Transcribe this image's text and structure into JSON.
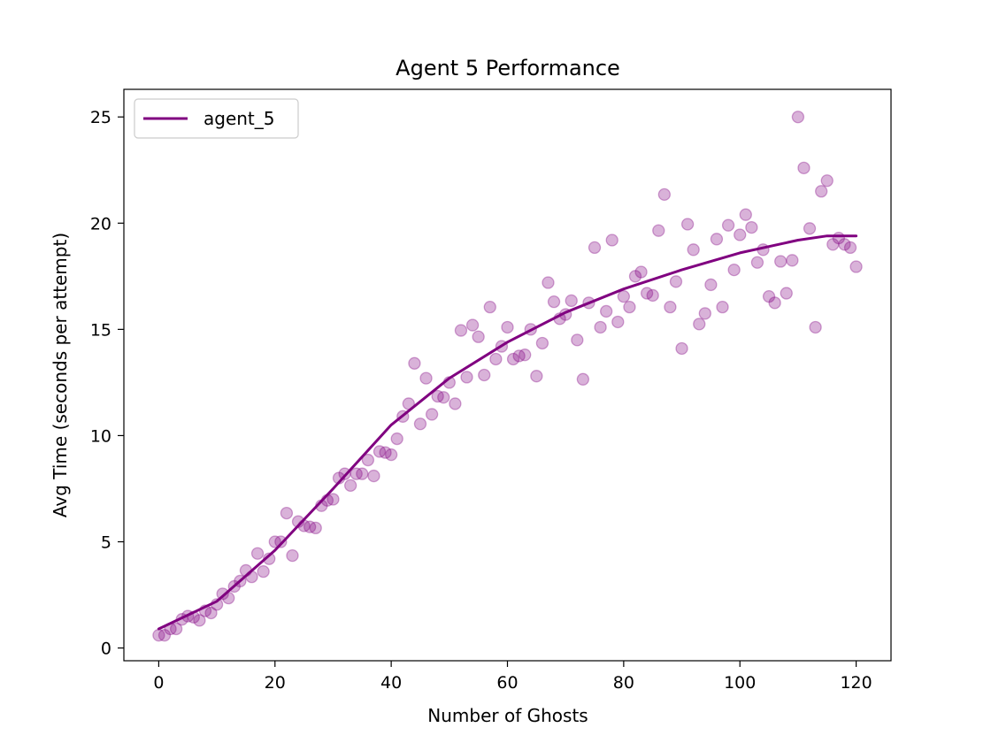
{
  "chart_data": {
    "type": "scatter",
    "title": "Agent 5 Performance",
    "xlabel": "Number of Ghosts",
    "ylabel": "Avg Time (seconds per attempt)",
    "xlim": [
      -6,
      126
    ],
    "ylim": [
      -0.6,
      26.3
    ],
    "xticks": [
      0,
      20,
      40,
      60,
      80,
      100,
      120
    ],
    "yticks": [
      0,
      5,
      10,
      15,
      20,
      25
    ],
    "grid": false,
    "legend": {
      "placement": "upper-left",
      "entries": [
        "agent_5"
      ]
    },
    "series": [
      {
        "name": "agent_5",
        "kind": "line",
        "color": "#800080",
        "x": [
          0,
          10,
          20,
          30,
          40,
          50,
          60,
          70,
          80,
          90,
          100,
          110,
          115,
          120
        ],
        "y": [
          0.9,
          2.2,
          4.6,
          7.5,
          10.5,
          12.7,
          14.4,
          15.8,
          16.9,
          17.8,
          18.6,
          19.2,
          19.4,
          19.4
        ]
      },
      {
        "name": "",
        "kind": "scatter",
        "color": "#800080",
        "opacity": 0.3,
        "x": [
          0,
          1,
          2,
          3,
          4,
          5,
          6,
          7,
          8,
          9,
          10,
          11,
          12,
          13,
          14,
          15,
          16,
          17,
          18,
          19,
          20,
          21,
          22,
          23,
          24,
          25,
          26,
          27,
          28,
          29,
          30,
          31,
          32,
          33,
          34,
          35,
          36,
          37,
          38,
          39,
          40,
          41,
          42,
          43,
          44,
          45,
          46,
          47,
          48,
          49,
          50,
          51,
          52,
          53,
          54,
          55,
          56,
          57,
          58,
          59,
          60,
          61,
          62,
          63,
          64,
          65,
          66,
          67,
          68,
          69,
          70,
          71,
          72,
          73,
          74,
          75,
          76,
          77,
          78,
          79,
          80,
          81,
          82,
          83,
          84,
          85,
          86,
          87,
          88,
          89,
          90,
          91,
          92,
          93,
          94,
          95,
          96,
          97,
          98,
          99,
          100,
          101,
          102,
          103,
          104,
          105,
          106,
          107,
          108,
          109,
          110,
          111,
          112,
          113,
          114,
          115,
          116,
          117,
          118,
          119,
          120
        ],
        "y": [
          0.6,
          0.6,
          0.9,
          0.9,
          1.35,
          1.5,
          1.45,
          1.3,
          1.75,
          1.65,
          2.05,
          2.55,
          2.35,
          2.9,
          3.15,
          3.65,
          3.35,
          4.45,
          3.6,
          4.2,
          5.0,
          5.0,
          6.35,
          4.35,
          5.95,
          5.75,
          5.7,
          5.65,
          6.7,
          6.95,
          7.0,
          8.0,
          8.2,
          7.65,
          8.2,
          8.2,
          8.85,
          8.1,
          9.25,
          9.2,
          9.1,
          9.85,
          10.9,
          11.5,
          13.4,
          10.55,
          12.7,
          11.0,
          11.85,
          11.8,
          12.5,
          11.5,
          14.95,
          12.75,
          15.2,
          14.65,
          12.85,
          16.05,
          13.6,
          14.2,
          15.1,
          13.6,
          13.75,
          13.8,
          15.0,
          12.8,
          14.35,
          17.2,
          16.3,
          15.5,
          15.7,
          16.35,
          14.5,
          12.65,
          16.25,
          18.85,
          15.1,
          15.85,
          19.2,
          15.35,
          16.55,
          16.05,
          17.5,
          17.7,
          16.7,
          16.6,
          19.65,
          21.35,
          16.05,
          17.25,
          14.1,
          19.95,
          18.75,
          15.25,
          15.75,
          17.1,
          19.25,
          16.05,
          19.9,
          17.8,
          19.45,
          20.4,
          19.8,
          18.15,
          18.75,
          16.55,
          16.25,
          18.2,
          16.7,
          18.25,
          25.0,
          22.6,
          19.75,
          15.1,
          21.5,
          22.0,
          19.0,
          19.3,
          19.0,
          18.85,
          17.95
        ]
      }
    ]
  }
}
